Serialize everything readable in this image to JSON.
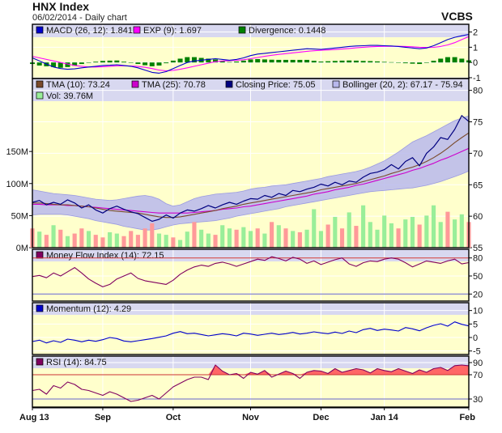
{
  "header": {
    "title": "HNX Index",
    "subtitle": "06/02/2014 - Daily chart",
    "source": "VCBS"
  },
  "colors": {
    "background": "#ffffcc",
    "legend_band": "#d8d8f0",
    "grid": "#ffffff",
    "border": "#000000",
    "price": "#000080",
    "tma10": "#7a4a2a",
    "tma25": "#cc00cc",
    "bollinger_fill": "#b8b8ec",
    "vol_up": "#99ee99",
    "vol_down": "#ff9999",
    "mfi": "#800060",
    "momentum": "#0000cc",
    "rsi": "#800060",
    "rsi_fill": "#ff6666",
    "macd": "#0000cc",
    "signal": "#ff00ff",
    "divergence": "#008000",
    "threshold_high": "#cc3333",
    "threshold_low": "#6666cc"
  },
  "chart_data": [
    {
      "type": "line",
      "title": "MACD",
      "ylim": [
        -1,
        2.4
      ],
      "yticks": [
        "2",
        "1",
        "0",
        "-1"
      ],
      "ytick_values": [
        2,
        1,
        0,
        -1
      ],
      "legend": [
        {
          "label": "MACD (26, 12): 1.841",
          "swatch": "macd"
        },
        {
          "label": "EXP (9): 1.697",
          "swatch": "signal"
        },
        {
          "label": "Divergence: 0.1448",
          "swatch": "divergence"
        }
      ],
      "series": [
        {
          "name": "MACD (26, 12)",
          "values": [
            0.3,
            0.1,
            -0.1,
            -0.3,
            -0.4,
            -0.45,
            -0.42,
            -0.35,
            -0.3,
            -0.25,
            -0.2,
            -0.18,
            -0.15,
            -0.2,
            -0.25,
            -0.35,
            -0.5,
            -0.65,
            -0.7,
            -0.6,
            -0.4,
            -0.2,
            0.0,
            0.1,
            0.15,
            0.2,
            0.25,
            0.2,
            0.15,
            0.2,
            0.3,
            0.45,
            0.55,
            0.6,
            0.65,
            0.7,
            0.75,
            0.8,
            0.85,
            0.9,
            0.88,
            0.86,
            0.9,
            0.95,
            1.0,
            1.05,
            1.08,
            1.1,
            1.12,
            1.12,
            1.1,
            1.08,
            1.05,
            1.0,
            0.95,
            0.9,
            0.95,
            1.1,
            1.3,
            1.5,
            1.65,
            1.75,
            1.84
          ]
        },
        {
          "name": "EXP (9)",
          "values": [
            0.4,
            0.3,
            0.2,
            0.1,
            0.0,
            -0.1,
            -0.2,
            -0.25,
            -0.3,
            -0.3,
            -0.28,
            -0.25,
            -0.22,
            -0.22,
            -0.23,
            -0.26,
            -0.32,
            -0.4,
            -0.5,
            -0.55,
            -0.52,
            -0.45,
            -0.35,
            -0.25,
            -0.15,
            -0.05,
            0.05,
            0.1,
            0.12,
            0.14,
            0.18,
            0.25,
            0.33,
            0.4,
            0.47,
            0.53,
            0.58,
            0.63,
            0.68,
            0.73,
            0.77,
            0.8,
            0.82,
            0.85,
            0.88,
            0.92,
            0.96,
            1.0,
            1.03,
            1.05,
            1.06,
            1.06,
            1.06,
            1.05,
            1.03,
            1.0,
            0.98,
            0.99,
            1.05,
            1.15,
            1.3,
            1.5,
            1.7
          ]
        },
        {
          "name": "Divergence",
          "values": [
            -0.1,
            -0.2,
            -0.25,
            -0.3,
            -0.35,
            -0.3,
            -0.22,
            -0.1,
            0.0,
            0.05,
            0.1,
            0.12,
            0.13,
            0.05,
            -0.02,
            -0.1,
            -0.18,
            -0.25,
            -0.2,
            -0.05,
            0.12,
            0.25,
            0.35,
            0.35,
            0.3,
            0.25,
            0.2,
            0.1,
            0.03,
            0.06,
            0.12,
            0.2,
            0.22,
            0.2,
            0.18,
            0.17,
            0.17,
            0.17,
            0.17,
            0.17,
            0.11,
            0.06,
            0.08,
            0.1,
            0.12,
            0.13,
            0.12,
            0.1,
            0.09,
            0.07,
            0.04,
            0.02,
            -0.01,
            -0.05,
            -0.08,
            -0.1,
            -0.03,
            0.11,
            0.25,
            0.35,
            0.35,
            0.25,
            0.14
          ]
        }
      ]
    },
    {
      "type": "line",
      "title": "Price",
      "ylim": [
        55,
        81.5
      ],
      "yticks": [
        "80",
        "75",
        "70",
        "65",
        "60",
        "55"
      ],
      "ytick_values": [
        80,
        75,
        70,
        65,
        60,
        55
      ],
      "vol_yticks": [
        "150M",
        "100M",
        "50M",
        "0M"
      ],
      "vol_ytick_values": [
        150,
        100,
        50,
        0
      ],
      "vol_ylim": [
        0,
        260
      ],
      "legend": [
        {
          "label": "TMA (10): 73.24",
          "swatch": "tma10"
        },
        {
          "label": "TMA (25): 70.78",
          "swatch": "tma25"
        },
        {
          "label": "Closing Price: 75.05",
          "swatch": "price"
        },
        {
          "label": "Bollinger (20, 2): 67.17 - 75.94",
          "swatch": "bollinger_fill"
        },
        {
          "label": "Vol: 39.76M",
          "swatch": "vol_up"
        }
      ],
      "series": [
        {
          "name": "Closing Price",
          "values": [
            62.2,
            62.5,
            61.8,
            62.2,
            61.9,
            62.6,
            62.1,
            61.3,
            61.8,
            61.0,
            60.5,
            61.2,
            61.6,
            61.1,
            60.7,
            60.4,
            59.8,
            59.2,
            59.5,
            60.2,
            59.7,
            60.5,
            61.0,
            60.8,
            61.2,
            61.7,
            61.3,
            61.8,
            62.2,
            61.9,
            62.4,
            62.8,
            62.7,
            63.3,
            63.0,
            63.6,
            63.3,
            64.1,
            63.9,
            64.3,
            64.6,
            65.1,
            64.8,
            65.4,
            65.0,
            65.6,
            65.4,
            66.2,
            66.8,
            67.0,
            67.4,
            68.2,
            67.5,
            68.7,
            69.3,
            68.0,
            70.0,
            71.0,
            72.5,
            72.2,
            73.8,
            76.0,
            75.05
          ]
        },
        {
          "name": "TMA (10)",
          "values": [
            62.1,
            62.1,
            62.0,
            61.9,
            61.8,
            61.8,
            61.7,
            61.6,
            61.5,
            61.3,
            61.1,
            60.9,
            60.8,
            60.7,
            60.6,
            60.5,
            60.3,
            60.1,
            59.9,
            59.8,
            59.8,
            59.9,
            60.1,
            60.3,
            60.5,
            60.7,
            60.9,
            61.2,
            61.4,
            61.6,
            61.9,
            62.1,
            62.3,
            62.5,
            62.7,
            62.9,
            63.1,
            63.3,
            63.5,
            63.7,
            63.9,
            64.2,
            64.4,
            64.6,
            64.8,
            65.0,
            65.2,
            65.5,
            65.8,
            66.1,
            66.4,
            66.8,
            67.1,
            67.5,
            67.8,
            68.2,
            68.7,
            69.3,
            70.0,
            70.8,
            71.7,
            72.5,
            73.24
          ]
        },
        {
          "name": "TMA (25)",
          "values": [
            61.9,
            61.9,
            61.8,
            61.8,
            61.8,
            61.7,
            61.7,
            61.6,
            61.5,
            61.4,
            61.3,
            61.2,
            61.1,
            61.0,
            60.9,
            60.8,
            60.7,
            60.6,
            60.5,
            60.5,
            60.5,
            60.5,
            60.5,
            60.6,
            60.7,
            60.8,
            60.9,
            61.1,
            61.2,
            61.3,
            61.5,
            61.6,
            61.8,
            62.0,
            62.2,
            62.4,
            62.6,
            62.8,
            63.0,
            63.2,
            63.5,
            63.7,
            63.9,
            64.2,
            64.4,
            64.6,
            64.9,
            65.1,
            65.4,
            65.7,
            66.0,
            66.3,
            66.6,
            66.9,
            67.3,
            67.6,
            68.0,
            68.4,
            68.9,
            69.3,
            69.8,
            70.3,
            70.78
          ]
        },
        {
          "name": "Bollinger upper",
          "values": [
            64.2,
            64.0,
            63.8,
            63.6,
            63.5,
            63.4,
            63.3,
            63.1,
            62.9,
            62.7,
            62.6,
            62.5,
            62.6,
            62.8,
            63.0,
            63.2,
            63.3,
            63.1,
            62.7,
            62.0,
            61.6,
            61.8,
            62.3,
            62.8,
            63.1,
            63.3,
            63.5,
            63.6,
            63.7,
            63.8,
            64.0,
            64.3,
            64.5,
            64.6,
            64.8,
            64.9,
            65.0,
            65.2,
            65.4,
            65.6,
            65.8,
            66.0,
            66.3,
            66.5,
            66.7,
            66.9,
            67.1,
            67.4,
            67.8,
            68.3,
            68.8,
            69.5,
            70.2,
            71.0,
            71.8,
            72.3,
            72.8,
            73.4,
            74.0,
            74.6,
            75.2,
            75.6,
            75.94
          ]
        },
        {
          "name": "Bollinger lower",
          "values": [
            60.2,
            60.3,
            60.3,
            60.3,
            60.3,
            60.2,
            60.0,
            59.8,
            59.6,
            59.3,
            59.1,
            58.9,
            58.7,
            58.4,
            58.2,
            58.0,
            57.8,
            57.8,
            58.0,
            58.3,
            58.6,
            58.8,
            58.9,
            59.0,
            59.1,
            59.2,
            59.3,
            59.5,
            59.7,
            60.0,
            60.2,
            60.4,
            60.6,
            60.8,
            61.0,
            61.2,
            61.5,
            61.7,
            61.9,
            62.1,
            62.3,
            62.5,
            62.7,
            62.9,
            63.1,
            63.3,
            63.5,
            63.7,
            63.9,
            64.0,
            64.1,
            64.2,
            64.3,
            64.4,
            64.5,
            64.7,
            64.9,
            65.2,
            65.5,
            65.9,
            66.3,
            66.7,
            67.17
          ]
        },
        {
          "name": "Vol",
          "values": [
            30,
            25,
            20,
            35,
            28,
            18,
            22,
            30,
            26,
            20,
            16,
            24,
            22,
            18,
            26,
            20,
            30,
            38,
            22,
            20,
            16,
            12,
            25,
            40,
            28,
            22,
            20,
            35,
            30,
            28,
            32,
            26,
            30,
            22,
            40,
            35,
            30,
            26,
            24,
            28,
            60,
            26,
            36,
            48,
            30,
            55,
            34,
            66,
            40,
            28,
            50,
            38,
            30,
            44,
            48,
            36,
            50,
            66,
            40,
            56,
            44,
            52,
            40
          ]
        },
        {
          "name": "Vol direction",
          "values": [
            0,
            1,
            0,
            1,
            0,
            1,
            0,
            0,
            1,
            0,
            0,
            1,
            1,
            0,
            0,
            0,
            0,
            0,
            1,
            1,
            0,
            1,
            1,
            0,
            1,
            1,
            0,
            1,
            1,
            0,
            1,
            1,
            0,
            1,
            0,
            1,
            0,
            1,
            0,
            1,
            1,
            1,
            0,
            1,
            0,
            1,
            0,
            1,
            1,
            1,
            1,
            1,
            0,
            1,
            1,
            0,
            1,
            1,
            1,
            0,
            1,
            1,
            0
          ]
        }
      ]
    },
    {
      "type": "line",
      "title": "Money Flow Index",
      "ylim": [
        11,
        89
      ],
      "yticks": [
        "80",
        "50",
        "20"
      ],
      "ytick_values": [
        80,
        50,
        20
      ],
      "thresholds": [
        80,
        20
      ],
      "legend": [
        {
          "label": "Money Flow Index (14): 72.15",
          "swatch": "mfi"
        }
      ],
      "series": [
        {
          "name": "Money Flow Index (14)",
          "values": [
            49,
            51,
            47,
            55,
            50,
            57,
            64,
            55,
            45,
            38,
            32,
            36,
            45,
            50,
            55,
            46,
            42,
            40,
            38,
            36,
            43,
            53,
            60,
            65,
            68,
            66,
            71,
            73,
            70,
            66,
            70,
            74,
            78,
            76,
            82,
            79,
            75,
            81,
            78,
            71,
            75,
            69,
            73,
            77,
            80,
            70,
            66,
            72,
            75,
            74,
            78,
            80,
            78,
            72,
            65,
            70,
            75,
            73,
            71,
            75,
            78,
            70,
            72.15
          ]
        }
      ]
    },
    {
      "type": "line",
      "title": "Momentum",
      "ylim": [
        -6,
        12
      ],
      "yticks": [
        "10",
        "5",
        "0",
        "-5"
      ],
      "ytick_values": [
        10,
        5,
        0,
        -5
      ],
      "legend": [
        {
          "label": "Momentum (12): 4.29",
          "swatch": "momentum"
        }
      ],
      "series": [
        {
          "name": "Momentum (12)",
          "values": [
            -1.5,
            -1.0,
            -2.0,
            -1.2,
            -1.8,
            -0.6,
            -1.0,
            -1.6,
            -1.0,
            -1.4,
            -0.8,
            0.0,
            -0.4,
            -1.3,
            -1.6,
            -1.2,
            -0.8,
            -0.4,
            0.1,
            0.6,
            1.6,
            2.2,
            1.4,
            1.6,
            1.1,
            0.6,
            1.0,
            1.4,
            1.1,
            0.6,
            1.6,
            1.3,
            0.8,
            1.2,
            1.6,
            1.1,
            1.4,
            1.9,
            1.3,
            1.6,
            2.1,
            1.7,
            1.4,
            2.0,
            1.5,
            2.4,
            1.8,
            2.9,
            3.4,
            2.6,
            3.1,
            2.8,
            2.4,
            3.7,
            3.2,
            2.5,
            3.6,
            4.5,
            5.1,
            4.2,
            5.8,
            4.9,
            4.29
          ]
        }
      ]
    },
    {
      "type": "line",
      "title": "RSI",
      "ylim": [
        18,
        94
      ],
      "yticks": [
        "90",
        "70",
        "30"
      ],
      "ytick_values": [
        90,
        70,
        30
      ],
      "thresholds": [
        70,
        30
      ],
      "legend": [
        {
          "label": "RSI (14): 84.75",
          "swatch": "rsi"
        }
      ],
      "series": [
        {
          "name": "RSI (14)",
          "values": [
            44,
            46,
            38,
            52,
            48,
            58,
            54,
            46,
            44,
            40,
            36,
            42,
            38,
            32,
            26,
            28,
            32,
            36,
            30,
            40,
            50,
            56,
            62,
            66,
            66,
            62,
            86,
            76,
            70,
            72,
            64,
            74,
            71,
            77,
            66,
            71,
            76,
            72,
            64,
            74,
            77,
            76,
            72,
            80,
            74,
            77,
            80,
            78,
            73,
            80,
            77,
            75,
            80,
            76,
            72,
            78,
            74,
            80,
            82,
            77,
            85,
            86,
            84.75
          ]
        }
      ]
    }
  ],
  "xaxis": {
    "labels": [
      "Aug 13",
      "Sep",
      "Oct",
      "Nov",
      "Dec",
      "Jan 14",
      "Feb"
    ],
    "label_index": [
      0,
      10,
      20,
      31,
      41,
      50,
      62
    ]
  }
}
